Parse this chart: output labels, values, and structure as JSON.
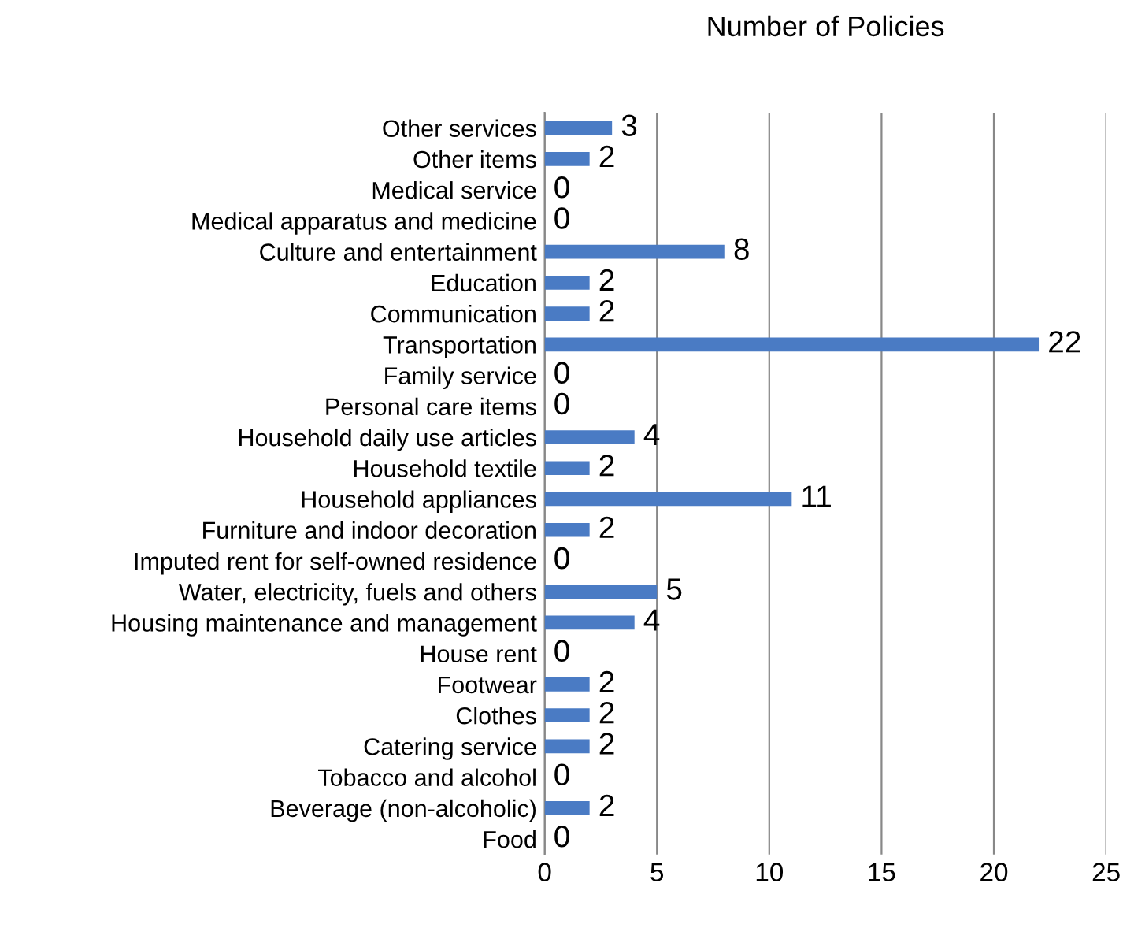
{
  "chart_data": {
    "type": "bar",
    "orientation": "horizontal",
    "title": "Number of Policies",
    "categories": [
      "Other services",
      "Other items",
      "Medical service",
      "Medical apparatus and medicine",
      "Culture and entertainment",
      "Education",
      "Communication",
      "Transportation",
      "Family service",
      "Personal care items",
      "Household daily use articles",
      "Household textile",
      "Household appliances",
      "Furniture and indoor decoration",
      "Imputed rent for self-owned residence",
      "Water, electricity, fuels and others",
      "Housing maintenance and management",
      "House rent",
      "Footwear",
      "Clothes",
      "Catering service",
      "Tobacco and alcohol",
      "Beverage (non-alcoholic)",
      "Food"
    ],
    "values": [
      3,
      2,
      0,
      0,
      8,
      2,
      2,
      22,
      0,
      0,
      4,
      2,
      11,
      2,
      0,
      5,
      4,
      0,
      2,
      2,
      2,
      0,
      2,
      0
    ],
    "color": "#4a7bc4",
    "xlim": [
      0,
      25
    ],
    "xticks": [
      0,
      5,
      10,
      15,
      20,
      25
    ],
    "grid": "x",
    "data_labels": true
  }
}
